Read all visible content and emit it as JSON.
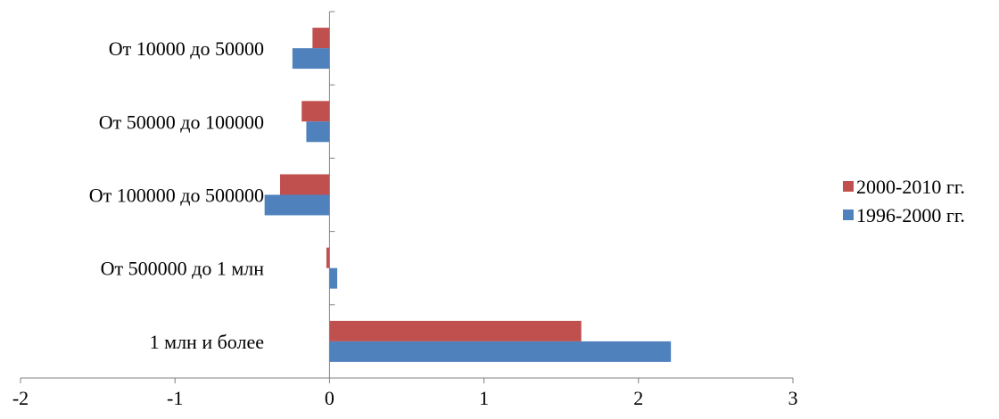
{
  "chart_data": {
    "type": "bar",
    "orientation": "horizontal",
    "title": "",
    "xlabel": "",
    "ylabel": "",
    "xlim": [
      -2,
      3
    ],
    "xticks": [
      -2,
      -1,
      0,
      1,
      2,
      3
    ],
    "grid": false,
    "legend_position": "right",
    "categories": [
      "1 млн и более",
      "От 500000 до 1 млн",
      "От 100000 до 500000",
      "От 50000 до 100000",
      "От 10000 до 50000"
    ],
    "series": [
      {
        "name": "1996-2000 гг.",
        "color": "#4F81BD",
        "values": [
          2.21,
          0.05,
          -0.42,
          -0.15,
          -0.24
        ]
      },
      {
        "name": "2000-2010 гг.",
        "color": "#C0504D",
        "values": [
          1.63,
          -0.02,
          -0.32,
          -0.18,
          -0.11
        ]
      }
    ],
    "legend_order": [
      1,
      0
    ]
  }
}
